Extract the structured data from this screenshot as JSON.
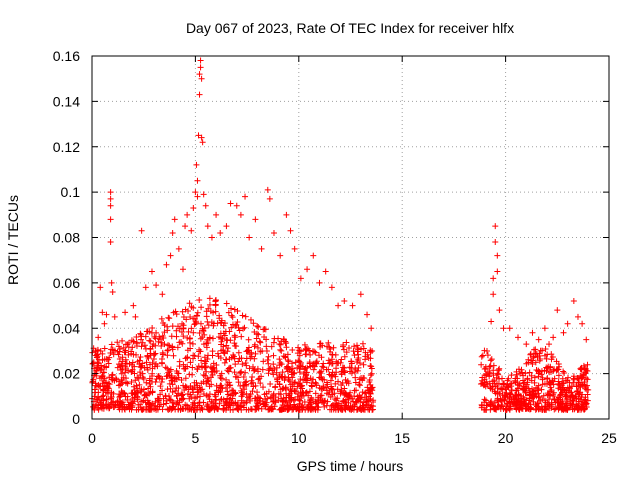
{
  "chart_data": {
    "type": "scatter",
    "title": "Day 067 of 2023, Rate Of TEC Index for receiver hlfx",
    "xlabel": "GPS time / hours",
    "ylabel": "ROTI / TECUs",
    "xlim": [
      0,
      25
    ],
    "ylim": [
      0,
      0.16
    ],
    "x_ticks": [
      "0",
      "5",
      "10",
      "15",
      "20",
      "25"
    ],
    "y_ticks": [
      "0",
      "0.02",
      "0.04",
      "0.06",
      "0.08",
      "0.1",
      "0.12",
      "0.14",
      "0.16"
    ],
    "grid": true,
    "marker": "+",
    "color": "#ff0000",
    "coverage_hours": [
      [
        0,
        13.6
      ],
      [
        18.8,
        24.0
      ]
    ],
    "series": [
      {
        "points": [
          [
            0.2,
            0.028
          ],
          [
            0.3,
            0.036
          ],
          [
            0.4,
            0.058
          ],
          [
            0.5,
            0.047
          ],
          [
            0.6,
            0.042
          ],
          [
            0.7,
            0.046
          ],
          [
            0.9,
            0.1
          ],
          [
            0.9,
            0.097
          ],
          [
            0.9,
            0.094
          ],
          [
            0.9,
            0.088
          ],
          [
            0.9,
            0.078
          ],
          [
            0.95,
            0.06
          ],
          [
            1.0,
            0.056
          ],
          [
            1.1,
            0.045
          ],
          [
            1.3,
            0.032
          ],
          [
            1.6,
            0.047
          ],
          [
            2.0,
            0.05
          ],
          [
            2.1,
            0.045
          ],
          [
            2.4,
            0.083
          ],
          [
            2.6,
            0.058
          ],
          [
            2.9,
            0.065
          ],
          [
            3.1,
            0.059
          ],
          [
            3.4,
            0.055
          ],
          [
            3.6,
            0.068
          ],
          [
            3.8,
            0.072
          ],
          [
            3.9,
            0.082
          ],
          [
            4.0,
            0.088
          ],
          [
            4.2,
            0.075
          ],
          [
            4.4,
            0.066
          ],
          [
            4.5,
            0.085
          ],
          [
            4.6,
            0.09
          ],
          [
            4.8,
            0.083
          ],
          [
            4.9,
            0.093
          ],
          [
            5.0,
            0.1
          ],
          [
            5.05,
            0.112
          ],
          [
            5.1,
            0.105
          ],
          [
            5.1,
            0.098
          ],
          [
            5.15,
            0.125
          ],
          [
            5.2,
            0.143
          ],
          [
            5.2,
            0.152
          ],
          [
            5.25,
            0.158
          ],
          [
            5.25,
            0.155
          ],
          [
            5.3,
            0.15
          ],
          [
            5.3,
            0.124
          ],
          [
            5.35,
            0.122
          ],
          [
            5.4,
            0.099
          ],
          [
            5.5,
            0.094
          ],
          [
            5.6,
            0.085
          ],
          [
            5.8,
            0.08
          ],
          [
            6.0,
            0.09
          ],
          [
            6.2,
            0.082
          ],
          [
            6.5,
            0.085
          ],
          [
            6.7,
            0.095
          ],
          [
            7.0,
            0.094
          ],
          [
            7.2,
            0.09
          ],
          [
            7.4,
            0.098
          ],
          [
            7.6,
            0.08
          ],
          [
            7.9,
            0.088
          ],
          [
            8.2,
            0.075
          ],
          [
            8.5,
            0.101
          ],
          [
            8.6,
            0.097
          ],
          [
            8.8,
            0.082
          ],
          [
            9.1,
            0.072
          ],
          [
            9.4,
            0.09
          ],
          [
            9.6,
            0.083
          ],
          [
            9.8,
            0.075
          ],
          [
            10.1,
            0.062
          ],
          [
            10.4,
            0.066
          ],
          [
            10.7,
            0.072
          ],
          [
            11.0,
            0.06
          ],
          [
            11.3,
            0.065
          ],
          [
            11.6,
            0.058
          ],
          [
            11.9,
            0.05
          ],
          [
            12.2,
            0.052
          ],
          [
            12.6,
            0.05
          ],
          [
            13.0,
            0.055
          ],
          [
            13.3,
            0.046
          ],
          [
            13.5,
            0.04
          ],
          [
            18.9,
            0.028
          ],
          [
            19.1,
            0.03
          ],
          [
            19.3,
            0.043
          ],
          [
            19.4,
            0.055
          ],
          [
            19.4,
            0.062
          ],
          [
            19.5,
            0.085
          ],
          [
            19.5,
            0.078
          ],
          [
            19.6,
            0.072
          ],
          [
            19.6,
            0.065
          ],
          [
            19.7,
            0.048
          ],
          [
            19.9,
            0.04
          ],
          [
            20.2,
            0.04
          ],
          [
            20.6,
            0.036
          ],
          [
            21.0,
            0.033
          ],
          [
            21.3,
            0.038
          ],
          [
            21.6,
            0.035
          ],
          [
            21.9,
            0.04
          ],
          [
            22.1,
            0.033
          ],
          [
            22.3,
            0.036
          ],
          [
            22.5,
            0.048
          ],
          [
            22.8,
            0.038
          ],
          [
            23.0,
            0.042
          ],
          [
            23.3,
            0.052
          ],
          [
            23.5,
            0.045
          ],
          [
            23.7,
            0.042
          ],
          [
            23.9,
            0.035
          ]
        ]
      }
    ]
  }
}
